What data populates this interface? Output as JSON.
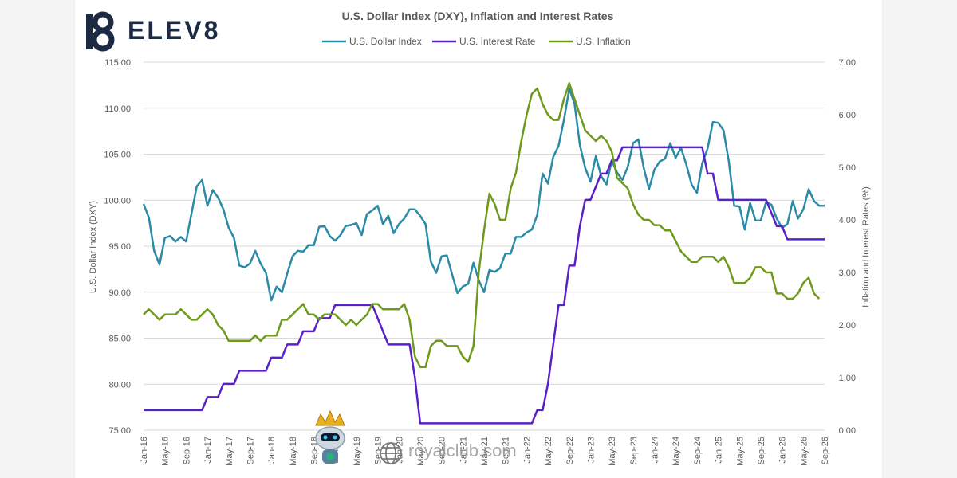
{
  "brand": {
    "logo_text": "ELEV8"
  },
  "watermark": {
    "text": "royalclub.com"
  },
  "colors": {
    "dxy": "#2a8aa8",
    "rate": "#5a20c8",
    "inflation": "#6e9a1c",
    "grid": "#d9d9d9",
    "axis_text": "#595959"
  },
  "chart_data": {
    "type": "line",
    "title": "U.S. Dollar Index (DXY), Inflation and Interest Rates",
    "ylabel_left": "U.S. Dollar Index (DXY)",
    "ylabel_right": "Inflation and Interest Rates (%)",
    "ylim_left": [
      75,
      115
    ],
    "ylim_right": [
      0,
      7
    ],
    "grid": true,
    "legend_position": "top-center",
    "x_ticks": [
      "Jan-16",
      "May-16",
      "Sep-16",
      "Jan-17",
      "May-17",
      "Sep-17",
      "Jan-18",
      "May-18",
      "Sep-18",
      "Jan-19",
      "May-19",
      "Sep-19",
      "Jan-20",
      "May-20",
      "Sep-20",
      "Jan-21",
      "May-21",
      "Sep-21",
      "Jan-22",
      "May-22",
      "Sep-22",
      "Jan-23",
      "May-23",
      "Sep-23",
      "Jan-24",
      "May-24",
      "Sep-24",
      "Jan-25",
      "May-25",
      "Sep-25",
      "Jan-26",
      "May-26",
      "Sep-26"
    ],
    "y_left_ticks": [
      "75.00",
      "80.00",
      "85.00",
      "90.00",
      "95.00",
      "100.00",
      "105.00",
      "110.00",
      "115.00"
    ],
    "y_right_ticks": [
      "0.00",
      "1.00",
      "2.00",
      "3.00",
      "4.00",
      "5.00",
      "6.00",
      "7.00"
    ],
    "series": [
      {
        "name": "U.S. Dollar Index",
        "axis": "left",
        "color": "#2a8aa8",
        "points": [
          [
            0,
            99.6
          ],
          [
            1,
            98.1
          ],
          [
            2,
            94.5
          ],
          [
            3,
            93.0
          ],
          [
            4,
            95.9
          ],
          [
            5,
            96.1
          ],
          [
            6,
            95.5
          ],
          [
            7,
            96.0
          ],
          [
            8,
            95.5
          ],
          [
            9,
            98.5
          ],
          [
            10,
            101.5
          ],
          [
            11,
            102.2
          ],
          [
            12,
            99.4
          ],
          [
            13,
            101.1
          ],
          [
            14,
            100.3
          ],
          [
            15,
            99.0
          ],
          [
            16,
            97.0
          ],
          [
            17,
            95.9
          ],
          [
            18,
            92.9
          ],
          [
            19,
            92.7
          ],
          [
            20,
            93.1
          ],
          [
            21,
            94.5
          ],
          [
            22,
            93.1
          ],
          [
            23,
            92.1
          ],
          [
            24,
            89.1
          ],
          [
            25,
            90.6
          ],
          [
            26,
            90.0
          ],
          [
            27,
            92.0
          ],
          [
            28,
            93.9
          ],
          [
            29,
            94.5
          ],
          [
            30,
            94.4
          ],
          [
            31,
            95.1
          ],
          [
            32,
            95.1
          ],
          [
            33,
            97.1
          ],
          [
            34,
            97.2
          ],
          [
            35,
            96.1
          ],
          [
            36,
            95.6
          ],
          [
            37,
            96.2
          ],
          [
            38,
            97.2
          ],
          [
            39,
            97.3
          ],
          [
            40,
            97.5
          ],
          [
            41,
            96.2
          ],
          [
            42,
            98.5
          ],
          [
            43,
            98.9
          ],
          [
            44,
            99.4
          ],
          [
            45,
            97.4
          ],
          [
            46,
            98.3
          ],
          [
            47,
            96.4
          ],
          [
            48,
            97.4
          ],
          [
            49,
            98.0
          ],
          [
            50,
            99.0
          ],
          [
            51,
            99.0
          ],
          [
            52,
            98.3
          ],
          [
            53,
            97.4
          ],
          [
            54,
            93.3
          ],
          [
            55,
            92.1
          ],
          [
            56,
            93.9
          ],
          [
            57,
            94.0
          ],
          [
            58,
            91.9
          ],
          [
            59,
            89.9
          ],
          [
            60,
            90.6
          ],
          [
            61,
            90.9
          ],
          [
            62,
            93.2
          ],
          [
            63,
            91.3
          ],
          [
            64,
            90.0
          ],
          [
            65,
            92.4
          ],
          [
            66,
            92.2
          ],
          [
            67,
            92.6
          ],
          [
            68,
            94.2
          ],
          [
            69,
            94.2
          ],
          [
            70,
            96.0
          ],
          [
            71,
            96.0
          ],
          [
            72,
            96.5
          ],
          [
            73,
            96.8
          ],
          [
            74,
            98.4
          ],
          [
            75,
            102.9
          ],
          [
            76,
            101.8
          ],
          [
            77,
            104.7
          ],
          [
            78,
            105.9
          ],
          [
            79,
            108.7
          ],
          [
            80,
            112.1
          ],
          [
            81,
            110.5
          ],
          [
            82,
            106.0
          ],
          [
            83,
            103.5
          ],
          [
            84,
            102.0
          ],
          [
            85,
            104.8
          ],
          [
            86,
            102.6
          ],
          [
            87,
            101.7
          ],
          [
            88,
            104.3
          ],
          [
            89,
            103.0
          ],
          [
            90,
            102.2
          ],
          [
            91,
            103.6
          ],
          [
            92,
            106.2
          ],
          [
            93,
            106.6
          ],
          [
            94,
            103.5
          ],
          [
            95,
            101.2
          ],
          [
            96,
            103.3
          ],
          [
            97,
            104.2
          ],
          [
            98,
            104.5
          ],
          [
            99,
            106.2
          ],
          [
            100,
            104.6
          ],
          [
            101,
            105.7
          ],
          [
            102,
            103.9
          ],
          [
            103,
            101.7
          ],
          [
            104,
            100.8
          ],
          [
            105,
            104.0
          ],
          [
            106,
            105.6
          ],
          [
            107,
            108.5
          ],
          [
            108,
            108.4
          ],
          [
            109,
            107.6
          ],
          [
            110,
            104.2
          ],
          [
            111,
            99.4
          ],
          [
            112,
            99.3
          ],
          [
            113,
            96.8
          ],
          [
            114,
            99.7
          ],
          [
            115,
            97.8
          ],
          [
            116,
            97.8
          ],
          [
            117,
            99.8
          ],
          [
            118,
            99.5
          ],
          [
            119,
            98.0
          ],
          [
            120,
            97.0
          ],
          [
            121,
            97.4
          ],
          [
            122,
            99.9
          ],
          [
            123,
            98.0
          ],
          [
            124,
            99.0
          ],
          [
            125,
            101.2
          ],
          [
            126,
            99.9
          ],
          [
            127,
            99.4
          ],
          [
            128,
            99.4
          ]
        ]
      },
      {
        "name": "U.S. Interest Rate",
        "axis": "right",
        "color": "#5a20c8",
        "points": [
          [
            0,
            0.38
          ],
          [
            11,
            0.38
          ],
          [
            12,
            0.63
          ],
          [
            14,
            0.63
          ],
          [
            15,
            0.88
          ],
          [
            17,
            0.88
          ],
          [
            18,
            1.13
          ],
          [
            23,
            1.13
          ],
          [
            24,
            1.38
          ],
          [
            26,
            1.38
          ],
          [
            27,
            1.63
          ],
          [
            29,
            1.63
          ],
          [
            30,
            1.88
          ],
          [
            32,
            1.88
          ],
          [
            33,
            2.13
          ],
          [
            35,
            2.13
          ],
          [
            36,
            2.38
          ],
          [
            43,
            2.38
          ],
          [
            44,
            2.13
          ],
          [
            45,
            1.88
          ],
          [
            46,
            1.63
          ],
          [
            50,
            1.63
          ],
          [
            51,
            1.0
          ],
          [
            52,
            0.13
          ],
          [
            73,
            0.13
          ],
          [
            74,
            0.38
          ],
          [
            75,
            0.38
          ],
          [
            76,
            0.88
          ],
          [
            77,
            1.63
          ],
          [
            78,
            2.38
          ],
          [
            79,
            2.38
          ],
          [
            80,
            3.13
          ],
          [
            81,
            3.13
          ],
          [
            82,
            3.88
          ],
          [
            83,
            4.38
          ],
          [
            84,
            4.38
          ],
          [
            85,
            4.63
          ],
          [
            86,
            4.88
          ],
          [
            87,
            4.88
          ],
          [
            88,
            5.13
          ],
          [
            89,
            5.13
          ],
          [
            90,
            5.38
          ],
          [
            105,
            5.38
          ],
          [
            106,
            4.88
          ],
          [
            107,
            4.88
          ],
          [
            108,
            4.38
          ],
          [
            117,
            4.38
          ],
          [
            118,
            4.13
          ],
          [
            119,
            3.88
          ],
          [
            120,
            3.88
          ],
          [
            121,
            3.63
          ],
          [
            128,
            3.63
          ]
        ]
      },
      {
        "name": "U.S. Inflation",
        "axis": "right",
        "color": "#6e9a1c",
        "points": [
          [
            0,
            2.2
          ],
          [
            1,
            2.3
          ],
          [
            2,
            2.2
          ],
          [
            3,
            2.1
          ],
          [
            4,
            2.2
          ],
          [
            5,
            2.2
          ],
          [
            6,
            2.2
          ],
          [
            7,
            2.3
          ],
          [
            8,
            2.2
          ],
          [
            9,
            2.1
          ],
          [
            10,
            2.1
          ],
          [
            11,
            2.2
          ],
          [
            12,
            2.3
          ],
          [
            13,
            2.2
          ],
          [
            14,
            2.0
          ],
          [
            15,
            1.9
          ],
          [
            16,
            1.7
          ],
          [
            17,
            1.7
          ],
          [
            18,
            1.7
          ],
          [
            19,
            1.7
          ],
          [
            20,
            1.7
          ],
          [
            21,
            1.8
          ],
          [
            22,
            1.7
          ],
          [
            23,
            1.8
          ],
          [
            24,
            1.8
          ],
          [
            25,
            1.8
          ],
          [
            26,
            2.1
          ],
          [
            27,
            2.1
          ],
          [
            28,
            2.2
          ],
          [
            29,
            2.3
          ],
          [
            30,
            2.4
          ],
          [
            31,
            2.2
          ],
          [
            32,
            2.2
          ],
          [
            33,
            2.1
          ],
          [
            34,
            2.2
          ],
          [
            35,
            2.2
          ],
          [
            36,
            2.2
          ],
          [
            37,
            2.1
          ],
          [
            38,
            2.0
          ],
          [
            39,
            2.1
          ],
          [
            40,
            2.0
          ],
          [
            41,
            2.1
          ],
          [
            42,
            2.2
          ],
          [
            43,
            2.4
          ],
          [
            44,
            2.4
          ],
          [
            45,
            2.3
          ],
          [
            46,
            2.3
          ],
          [
            47,
            2.3
          ],
          [
            48,
            2.3
          ],
          [
            49,
            2.4
          ],
          [
            50,
            2.1
          ],
          [
            51,
            1.4
          ],
          [
            52,
            1.2
          ],
          [
            53,
            1.2
          ],
          [
            54,
            1.6
          ],
          [
            55,
            1.7
          ],
          [
            56,
            1.7
          ],
          [
            57,
            1.6
          ],
          [
            58,
            1.6
          ],
          [
            59,
            1.6
          ],
          [
            60,
            1.4
          ],
          [
            61,
            1.3
          ],
          [
            62,
            1.6
          ],
          [
            63,
            3.0
          ],
          [
            64,
            3.8
          ],
          [
            65,
            4.5
          ],
          [
            66,
            4.3
          ],
          [
            67,
            4.0
          ],
          [
            68,
            4.0
          ],
          [
            69,
            4.6
          ],
          [
            70,
            4.9
          ],
          [
            71,
            5.5
          ],
          [
            72,
            6.0
          ],
          [
            73,
            6.4
          ],
          [
            74,
            6.5
          ],
          [
            75,
            6.2
          ],
          [
            76,
            6.0
          ],
          [
            77,
            5.9
          ],
          [
            78,
            5.9
          ],
          [
            79,
            6.3
          ],
          [
            80,
            6.6
          ],
          [
            81,
            6.3
          ],
          [
            82,
            6.0
          ],
          [
            83,
            5.7
          ],
          [
            84,
            5.6
          ],
          [
            85,
            5.5
          ],
          [
            86,
            5.6
          ],
          [
            87,
            5.5
          ],
          [
            88,
            5.3
          ],
          [
            89,
            4.8
          ],
          [
            90,
            4.7
          ],
          [
            91,
            4.6
          ],
          [
            92,
            4.3
          ],
          [
            93,
            4.1
          ],
          [
            94,
            4.0
          ],
          [
            95,
            4.0
          ],
          [
            96,
            3.9
          ],
          [
            97,
            3.9
          ],
          [
            98,
            3.8
          ],
          [
            99,
            3.8
          ],
          [
            100,
            3.6
          ],
          [
            101,
            3.4
          ],
          [
            102,
            3.3
          ],
          [
            103,
            3.2
          ],
          [
            104,
            3.2
          ],
          [
            105,
            3.3
          ],
          [
            106,
            3.3
          ],
          [
            107,
            3.3
          ],
          [
            108,
            3.2
          ],
          [
            109,
            3.3
          ],
          [
            110,
            3.1
          ],
          [
            111,
            2.8
          ],
          [
            112,
            2.8
          ],
          [
            113,
            2.8
          ],
          [
            114,
            2.9
          ],
          [
            115,
            3.1
          ],
          [
            116,
            3.1
          ],
          [
            117,
            3.0
          ],
          [
            118,
            3.0
          ],
          [
            119,
            2.6
          ],
          [
            120,
            2.6
          ],
          [
            121,
            2.5
          ],
          [
            122,
            2.5
          ],
          [
            123,
            2.6
          ],
          [
            124,
            2.8
          ],
          [
            125,
            2.9
          ],
          [
            126,
            2.6
          ],
          [
            127,
            2.5
          ]
        ]
      }
    ]
  }
}
